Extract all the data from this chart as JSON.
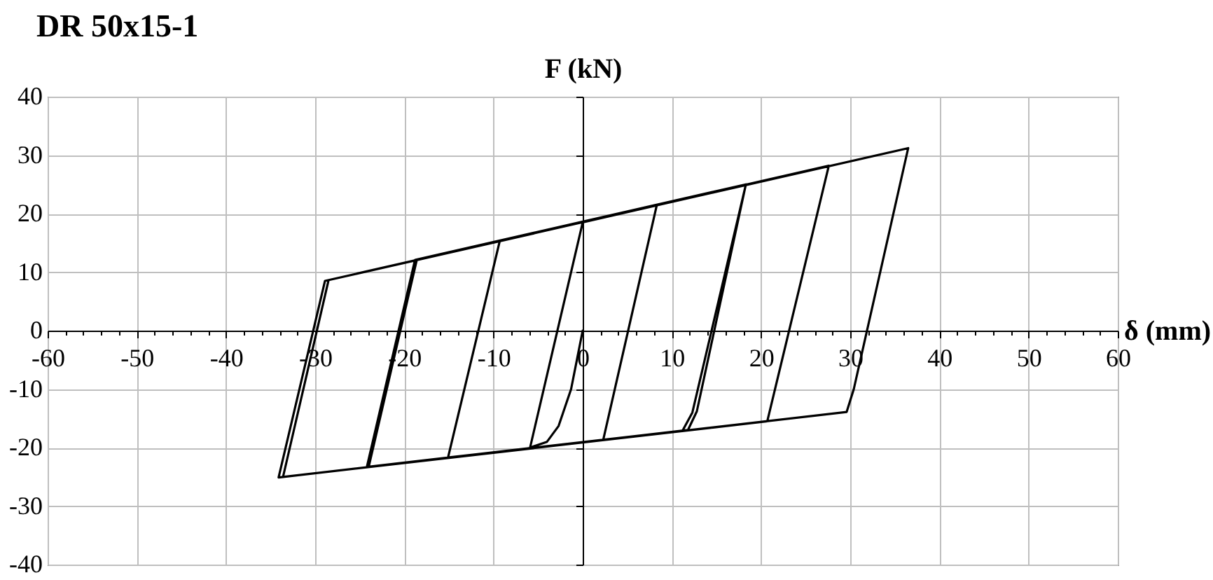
{
  "chart_data": {
    "type": "line",
    "title": "DR 50x15-1",
    "xlabel": "δ (mm)",
    "ylabel": "F (kN)",
    "series": [
      {
        "color": "#000000",
        "x": [
          0,
          -1.3,
          -2.7,
          -4.0,
          -5.9,
          0,
          8.3,
          2.3,
          -15.1,
          -9.3,
          18.3,
          12.3,
          11.2,
          -24.2,
          -18.8,
          18.3,
          12.8,
          11.8,
          -24.0,
          -18.6,
          27.6,
          20.7,
          -34.1,
          -28.9,
          36.5,
          30.4,
          29.6,
          -33.6,
          -28.5
        ],
        "values": [
          0,
          -10,
          -16.3,
          -19.0,
          -20.0,
          18.5,
          21.4,
          -18.7,
          -21.7,
          15.3,
          25.0,
          -14.0,
          -17.1,
          -23.3,
          12.1,
          25.0,
          -13.8,
          -17.0,
          -23.3,
          12.1,
          28.2,
          -15.5,
          -25.1,
          8.5,
          31.2,
          -10.0,
          -13.9,
          -25.0,
          8.6
        ]
      }
    ],
    "xlim": [
      -60,
      60
    ],
    "ylim": [
      -40,
      40
    ],
    "xticks": [
      -60,
      {
        "value": -58,
        "label": null
      },
      {
        "value": -56,
        "label": null
      },
      {
        "value": -54,
        "label": null
      },
      {
        "value": -52,
        "label": null
      },
      -50,
      {
        "value": -48,
        "label": null
      },
      {
        "value": -46,
        "label": null
      },
      {
        "value": -44,
        "label": null
      },
      {
        "value": -42,
        "label": null
      },
      -40,
      {
        "value": -38,
        "label": null
      },
      {
        "value": -36,
        "label": null
      },
      {
        "value": -34,
        "label": null
      },
      {
        "value": -32,
        "label": null
      },
      -30,
      {
        "value": -28,
        "label": null
      },
      {
        "value": -26,
        "label": null
      },
      {
        "value": -24,
        "label": null
      },
      {
        "value": -22,
        "label": null
      },
      -20,
      {
        "value": -18,
        "label": null
      },
      {
        "value": -16,
        "label": null
      },
      {
        "value": -14,
        "label": null
      },
      {
        "value": -12,
        "label": null
      },
      -10,
      {
        "value": -8,
        "label": null
      },
      {
        "value": -6,
        "label": null
      },
      {
        "value": -4,
        "label": null
      },
      {
        "value": -2,
        "label": null
      },
      0,
      {
        "value": 2,
        "label": null
      },
      {
        "value": 4,
        "label": null
      },
      {
        "value": 6,
        "label": null
      },
      {
        "value": 8,
        "label": null
      },
      10,
      {
        "value": 12,
        "label": null
      },
      {
        "value": 14,
        "label": null
      },
      {
        "value": 16,
        "label": null
      },
      {
        "value": 18,
        "label": null
      },
      20,
      {
        "value": 22,
        "label": null
      },
      {
        "value": 24,
        "label": null
      },
      {
        "value": 26,
        "label": null
      },
      {
        "value": 28,
        "label": null
      },
      30,
      {
        "value": 32,
        "label": null
      },
      {
        "value": 34,
        "label": null
      },
      {
        "value": 36,
        "label": null
      },
      {
        "value": 38,
        "label": null
      },
      40,
      {
        "value": 42,
        "label": null
      },
      {
        "value": 44,
        "label": null
      },
      {
        "value": 46,
        "label": null
      },
      {
        "value": 48,
        "label": null
      },
      50,
      {
        "value": 52,
        "label": null
      },
      {
        "value": 54,
        "label": null
      },
      {
        "value": 56,
        "label": null
      },
      {
        "value": 58,
        "label": null
      },
      60
    ],
    "yticks": [
      -40,
      -30,
      -20,
      -10,
      0,
      10,
      20,
      30,
      40
    ],
    "grid": true,
    "marker": "none",
    "line_style": "solid"
  }
}
